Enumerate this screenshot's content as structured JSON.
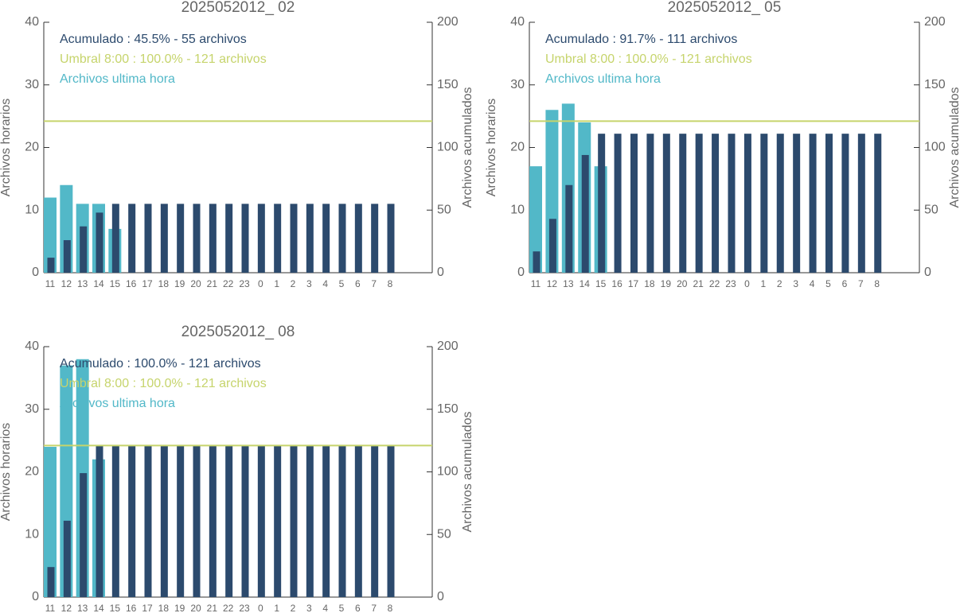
{
  "chart_data": [
    {
      "type": "bar",
      "title": "2025052012_ 02",
      "categories": [
        "11",
        "12",
        "13",
        "14",
        "15",
        "16",
        "17",
        "18",
        "19",
        "20",
        "21",
        "22",
        "23",
        "0",
        "1",
        "2",
        "3",
        "4",
        "5",
        "6",
        "7",
        "8"
      ],
      "series": [
        {
          "name": "Archivos ultima hora",
          "color": "#52b8c8",
          "axis": "y",
          "values": [
            12,
            14,
            11,
            11,
            7,
            null,
            null,
            null,
            null,
            null,
            null,
            null,
            null,
            null,
            null,
            null,
            null,
            null,
            null,
            null,
            null,
            null
          ]
        },
        {
          "name": "Acumulado : 45.5% - 55 archivos",
          "color": "#2c4a6d",
          "axis": "y2",
          "values": [
            12,
            26,
            37,
            48,
            55,
            55,
            55,
            55,
            55,
            55,
            55,
            55,
            55,
            55,
            55,
            55,
            55,
            55,
            55,
            55,
            55,
            55
          ]
        }
      ],
      "threshold": {
        "name": "Umbral 8:00 : 100.0% - 121 archivos",
        "value": 121,
        "color": "#c6d46c",
        "axis": "y2"
      },
      "ylabel": "Archivos horarios",
      "y2label": "Archivos acumulados",
      "ylim": [
        0,
        40
      ],
      "yticks": [
        0,
        10,
        20,
        30,
        40
      ],
      "y2lim": [
        0,
        200
      ],
      "y2ticks": [
        0,
        50,
        100,
        150,
        200
      ]
    },
    {
      "type": "bar",
      "title": "2025052012_ 05",
      "categories": [
        "11",
        "12",
        "13",
        "14",
        "15",
        "16",
        "17",
        "18",
        "19",
        "20",
        "21",
        "22",
        "23",
        "0",
        "1",
        "2",
        "3",
        "4",
        "5",
        "6",
        "7",
        "8"
      ],
      "series": [
        {
          "name": "Archivos ultima hora",
          "color": "#52b8c8",
          "axis": "y",
          "values": [
            17,
            26,
            27,
            24,
            17,
            null,
            null,
            null,
            null,
            null,
            null,
            null,
            null,
            null,
            null,
            null,
            null,
            null,
            null,
            null,
            null,
            null
          ]
        },
        {
          "name": "Acumulado : 91.7% - 111 archivos",
          "color": "#2c4a6d",
          "axis": "y2",
          "values": [
            17,
            43,
            70,
            94,
            111,
            111,
            111,
            111,
            111,
            111,
            111,
            111,
            111,
            111,
            111,
            111,
            111,
            111,
            111,
            111,
            111,
            111
          ]
        }
      ],
      "threshold": {
        "name": "Umbral 8:00 : 100.0% - 121 archivos",
        "value": 121,
        "color": "#c6d46c",
        "axis": "y2"
      },
      "ylabel": "Archivos horarios",
      "y2label": "Archivos acumulados",
      "ylim": [
        0,
        40
      ],
      "yticks": [
        0,
        10,
        20,
        30,
        40
      ],
      "y2lim": [
        0,
        200
      ],
      "y2ticks": [
        0,
        50,
        100,
        150,
        200
      ]
    },
    {
      "type": "bar",
      "title": "2025052012_ 08",
      "categories": [
        "11",
        "12",
        "13",
        "14",
        "15",
        "16",
        "17",
        "18",
        "19",
        "20",
        "21",
        "22",
        "23",
        "0",
        "1",
        "2",
        "3",
        "4",
        "5",
        "6",
        "7",
        "8"
      ],
      "series": [
        {
          "name": "Archivos ultima hora",
          "color": "#52b8c8",
          "axis": "y",
          "values": [
            24,
            37,
            38,
            22,
            null,
            null,
            null,
            null,
            null,
            null,
            null,
            null,
            null,
            null,
            null,
            null,
            null,
            null,
            null,
            null,
            null,
            null
          ]
        },
        {
          "name": "Acumulado : 100.0% - 121 archivos",
          "color": "#2c4a6d",
          "axis": "y2",
          "values": [
            24,
            61,
            99,
            121,
            121,
            121,
            121,
            121,
            121,
            121,
            121,
            121,
            121,
            121,
            121,
            121,
            121,
            121,
            121,
            121,
            121,
            121
          ]
        }
      ],
      "threshold": {
        "name": "Umbral 8:00 : 100.0% - 121 archivos",
        "value": 121,
        "color": "#c6d46c",
        "axis": "y2"
      },
      "ylabel": "Archivos horarios",
      "y2label": "Archivos acumulados",
      "ylim": [
        0,
        40
      ],
      "yticks": [
        0,
        10,
        20,
        30,
        40
      ],
      "y2lim": [
        0,
        200
      ],
      "y2ticks": [
        0,
        50,
        100,
        150,
        200
      ]
    }
  ]
}
